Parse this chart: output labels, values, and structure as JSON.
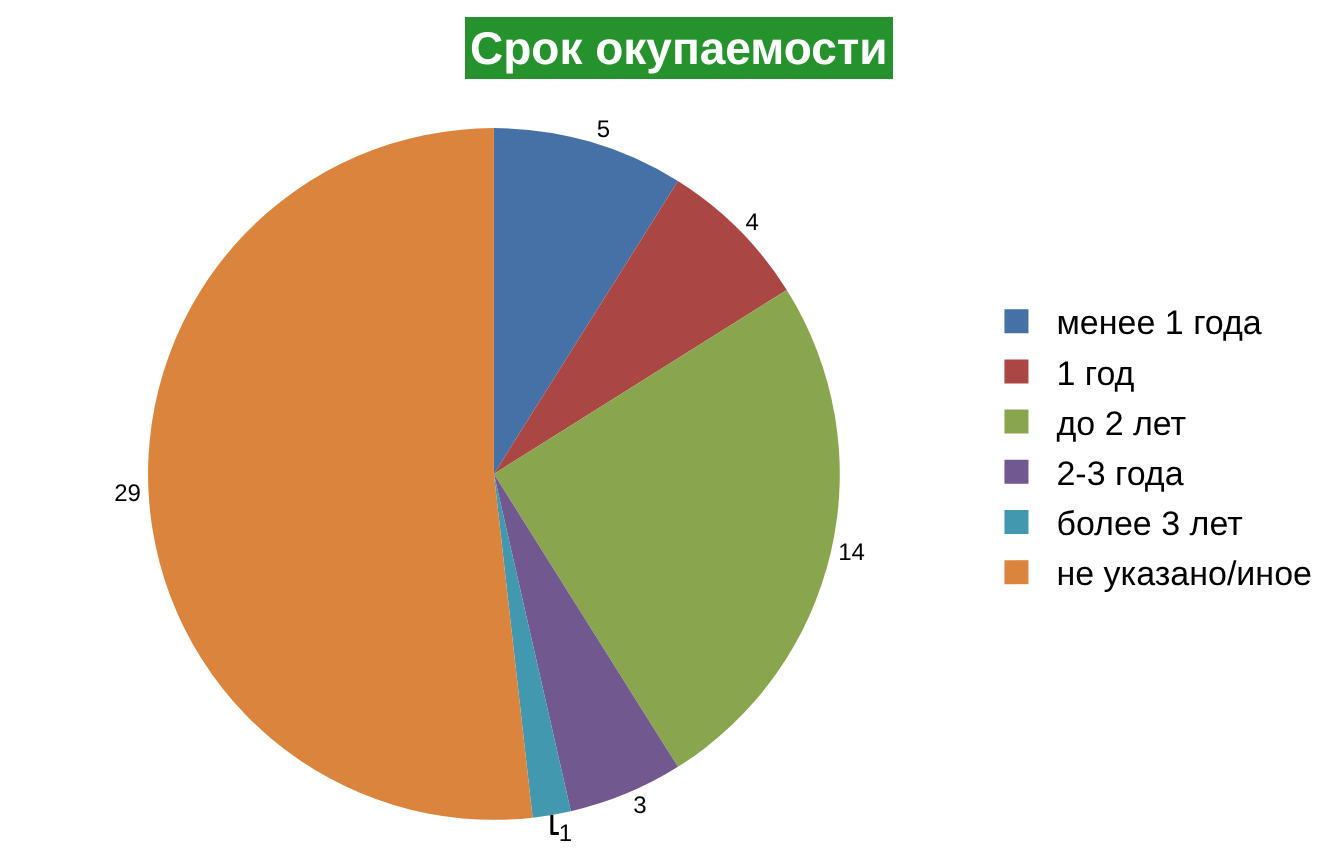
{
  "chart_data": {
    "type": "pie",
    "title": "Срок окупаемости",
    "categories": [
      "менее 1 года",
      "1 год",
      "до 2 лет",
      "2-3 года",
      "более 3 лет",
      "не указано/иное"
    ],
    "values": [
      5,
      4,
      14,
      3,
      1,
      29
    ],
    "colors": [
      "#4571a6",
      "#aa4644",
      "#89a54e",
      "#71588f",
      "#4198af",
      "#db843d"
    ],
    "data_labels": true,
    "legend": "right"
  }
}
